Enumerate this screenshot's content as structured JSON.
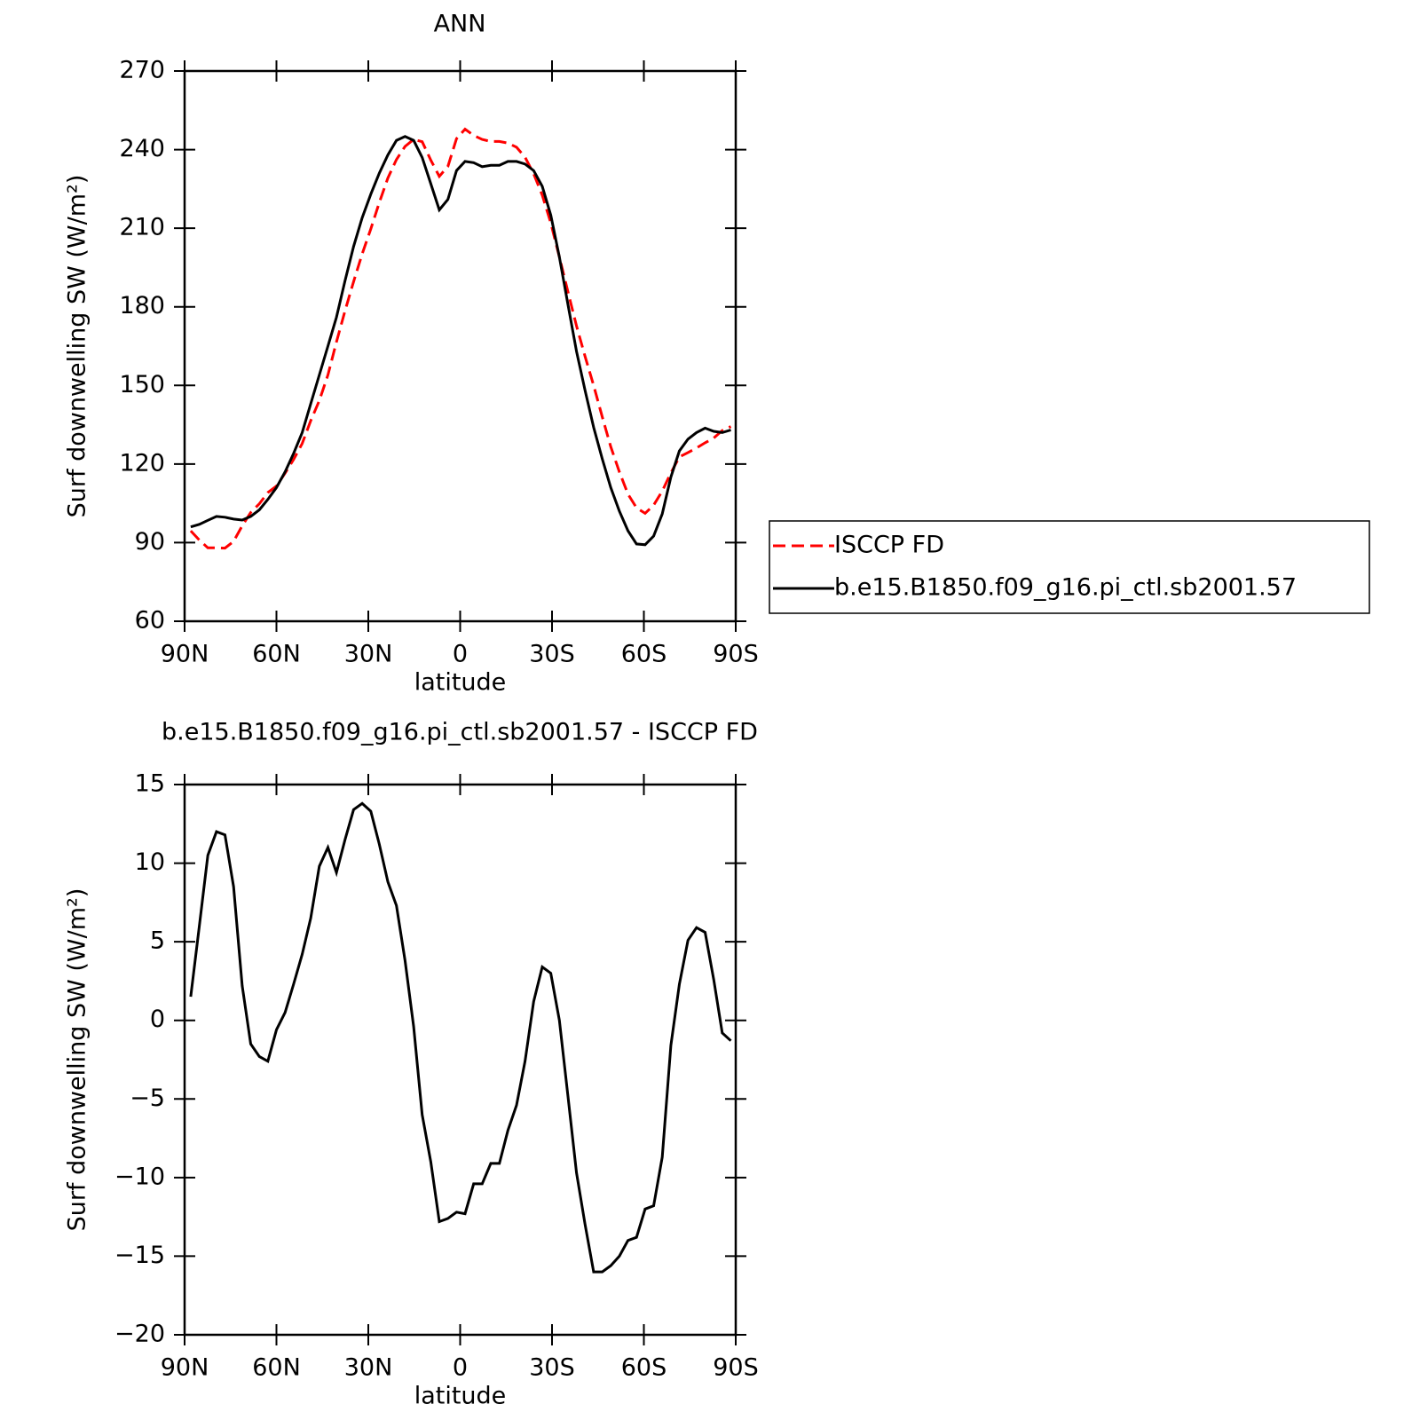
{
  "chart_data": [
    {
      "type": "line",
      "title": "ANN",
      "x_label": "latitude",
      "y_label": "Surf downwelling SW (W/m²)",
      "x": [
        88.0,
        85.2,
        82.4,
        79.6,
        76.8,
        74.0,
        71.2,
        68.4,
        65.6,
        62.8,
        60.0,
        57.2,
        54.4,
        51.6,
        48.8,
        46.0,
        43.2,
        40.4,
        37.6,
        34.8,
        32.0,
        29.2,
        26.4,
        23.6,
        20.8,
        18.0,
        15.2,
        12.4,
        9.6,
        6.8,
        4.0,
        1.2,
        -1.6,
        -4.4,
        -7.2,
        -10.0,
        -12.8,
        -15.6,
        -18.4,
        -21.2,
        -24.0,
        -26.8,
        -29.6,
        -32.4,
        -35.2,
        -38.0,
        -40.8,
        -43.6,
        -46.4,
        -49.2,
        -52.0,
        -54.8,
        -57.6,
        -60.4,
        -63.2,
        -66.0,
        -68.8,
        -71.6,
        -74.4,
        -77.2,
        -80.0,
        -82.8,
        -85.6,
        -88.4
      ],
      "series": [
        {
          "name": "ISCCP FD",
          "color": "#ff0000",
          "line_style": "dashed",
          "values": [
            94.5,
            91,
            88,
            88,
            87.9,
            90.5,
            96.4,
            101.5,
            104.8,
            109.1,
            111.6,
            116.5,
            121.7,
            127.8,
            136.5,
            144.2,
            154,
            166.6,
            178.5,
            189.6,
            200.2,
            209.7,
            219.8,
            229.2,
            236.2,
            241.2,
            243.9,
            243,
            236,
            229.8,
            233.6,
            244.2,
            247.8,
            245.4,
            243.9,
            243.1,
            243.1,
            242.5,
            240.9,
            237.1,
            230.8,
            222.6,
            212,
            199,
            185.8,
            172.7,
            161,
            150,
            138,
            126.6,
            117,
            108.5,
            103.3,
            101.2,
            104.3,
            109.7,
            116.6,
            122.7,
            124.4,
            126.1,
            128.1,
            129.9,
            132.8,
            134.3
          ]
        },
        {
          "name": "b.e15.B1850.f09_g16.pi_ctl.sb2001.57",
          "color": "#000000",
          "line_style": "solid",
          "values": [
            96,
            97,
            98.5,
            100,
            99.7,
            99,
            98.6,
            100,
            102.5,
            106.5,
            111,
            117,
            124,
            132,
            143,
            154,
            165,
            176,
            190,
            203,
            214,
            223,
            231,
            238,
            243.5,
            245,
            243.5,
            237,
            227,
            217,
            221,
            232,
            235.5,
            235,
            233.5,
            234,
            234,
            235.5,
            235.5,
            234.5,
            232,
            226,
            215,
            199,
            181,
            163,
            148,
            134,
            122,
            111,
            102,
            94.5,
            89.5,
            89.2,
            92.5,
            101,
            115,
            125,
            129.5,
            132,
            133.7,
            132.5,
            132,
            133
          ]
        }
      ],
      "xlim": [
        90,
        -90
      ],
      "xticks": [
        {
          "value": 90,
          "label": "90N"
        },
        {
          "value": 60,
          "label": "60N"
        },
        {
          "value": 30,
          "label": "30N"
        },
        0,
        {
          "value": -30,
          "label": "30S"
        },
        {
          "value": -60,
          "label": "60S"
        },
        {
          "value": -90,
          "label": "90S"
        }
      ],
      "ylim": [
        60,
        270
      ],
      "yticks": [
        60,
        90,
        120,
        150,
        180,
        210,
        240,
        270
      ],
      "legend": "right"
    },
    {
      "type": "line",
      "title": "b.e15.B1850.f09_g16.pi_ctl.sb2001.57 - ISCCP FD",
      "x_label": "latitude",
      "y_label": "Surf downwelling SW (W/m²)",
      "x": [
        88.0,
        85.2,
        82.4,
        79.6,
        76.8,
        74.0,
        71.2,
        68.4,
        65.6,
        62.8,
        60.0,
        57.2,
        54.4,
        51.6,
        48.8,
        46.0,
        43.2,
        40.4,
        37.6,
        34.8,
        32.0,
        29.2,
        26.4,
        23.6,
        20.8,
        18.0,
        15.2,
        12.4,
        9.6,
        6.8,
        4.0,
        1.2,
        -1.6,
        -4.4,
        -7.2,
        -10.0,
        -12.8,
        -15.6,
        -18.4,
        -21.2,
        -24.0,
        -26.8,
        -29.6,
        -32.4,
        -35.2,
        -38.0,
        -40.8,
        -43.6,
        -46.4,
        -49.2,
        -52.0,
        -54.8,
        -57.6,
        -60.4,
        -63.2,
        -66.0,
        -68.8,
        -71.6,
        -74.4,
        -77.2,
        -80.0,
        -82.8,
        -85.6,
        -88.4
      ],
      "series": [
        {
          "color": "#000000",
          "line_style": "solid",
          "values": [
            1.5,
            6,
            10.5,
            12,
            11.8,
            8.5,
            2.2,
            -1.5,
            -2.3,
            -2.6,
            -0.6,
            0.5,
            2.3,
            4.2,
            6.5,
            9.8,
            11,
            9.4,
            11.5,
            13.4,
            13.8,
            13.3,
            11.2,
            8.8,
            7.3,
            3.8,
            -0.4,
            -6,
            -9,
            -12.8,
            -12.6,
            -12.2,
            -12.3,
            -10.4,
            -10.4,
            -9.1,
            -9.1,
            -7,
            -5.4,
            -2.6,
            1.2,
            3.4,
            3,
            0,
            -4.8,
            -9.7,
            -13,
            -16,
            -16,
            -15.6,
            -15,
            -14,
            -13.8,
            -12,
            -11.8,
            -8.7,
            -1.6,
            2.3,
            5.1,
            5.9,
            5.6,
            2.6,
            -0.8,
            -1.3
          ]
        }
      ],
      "xlim": [
        90,
        -90
      ],
      "xticks": [
        {
          "value": 90,
          "label": "90N"
        },
        {
          "value": 60,
          "label": "60N"
        },
        {
          "value": 30,
          "label": "30N"
        },
        0,
        {
          "value": -30,
          "label": "30S"
        },
        {
          "value": -60,
          "label": "60S"
        },
        {
          "value": -90,
          "label": "90S"
        }
      ],
      "ylim": [
        -20,
        15
      ],
      "yticks": [
        {
          "value": -20,
          "label": "−20"
        },
        {
          "value": -15,
          "label": "−15"
        },
        {
          "value": -10,
          "label": "−10"
        },
        {
          "value": -5,
          "label": "−5"
        },
        0,
        5,
        10,
        15
      ]
    }
  ]
}
